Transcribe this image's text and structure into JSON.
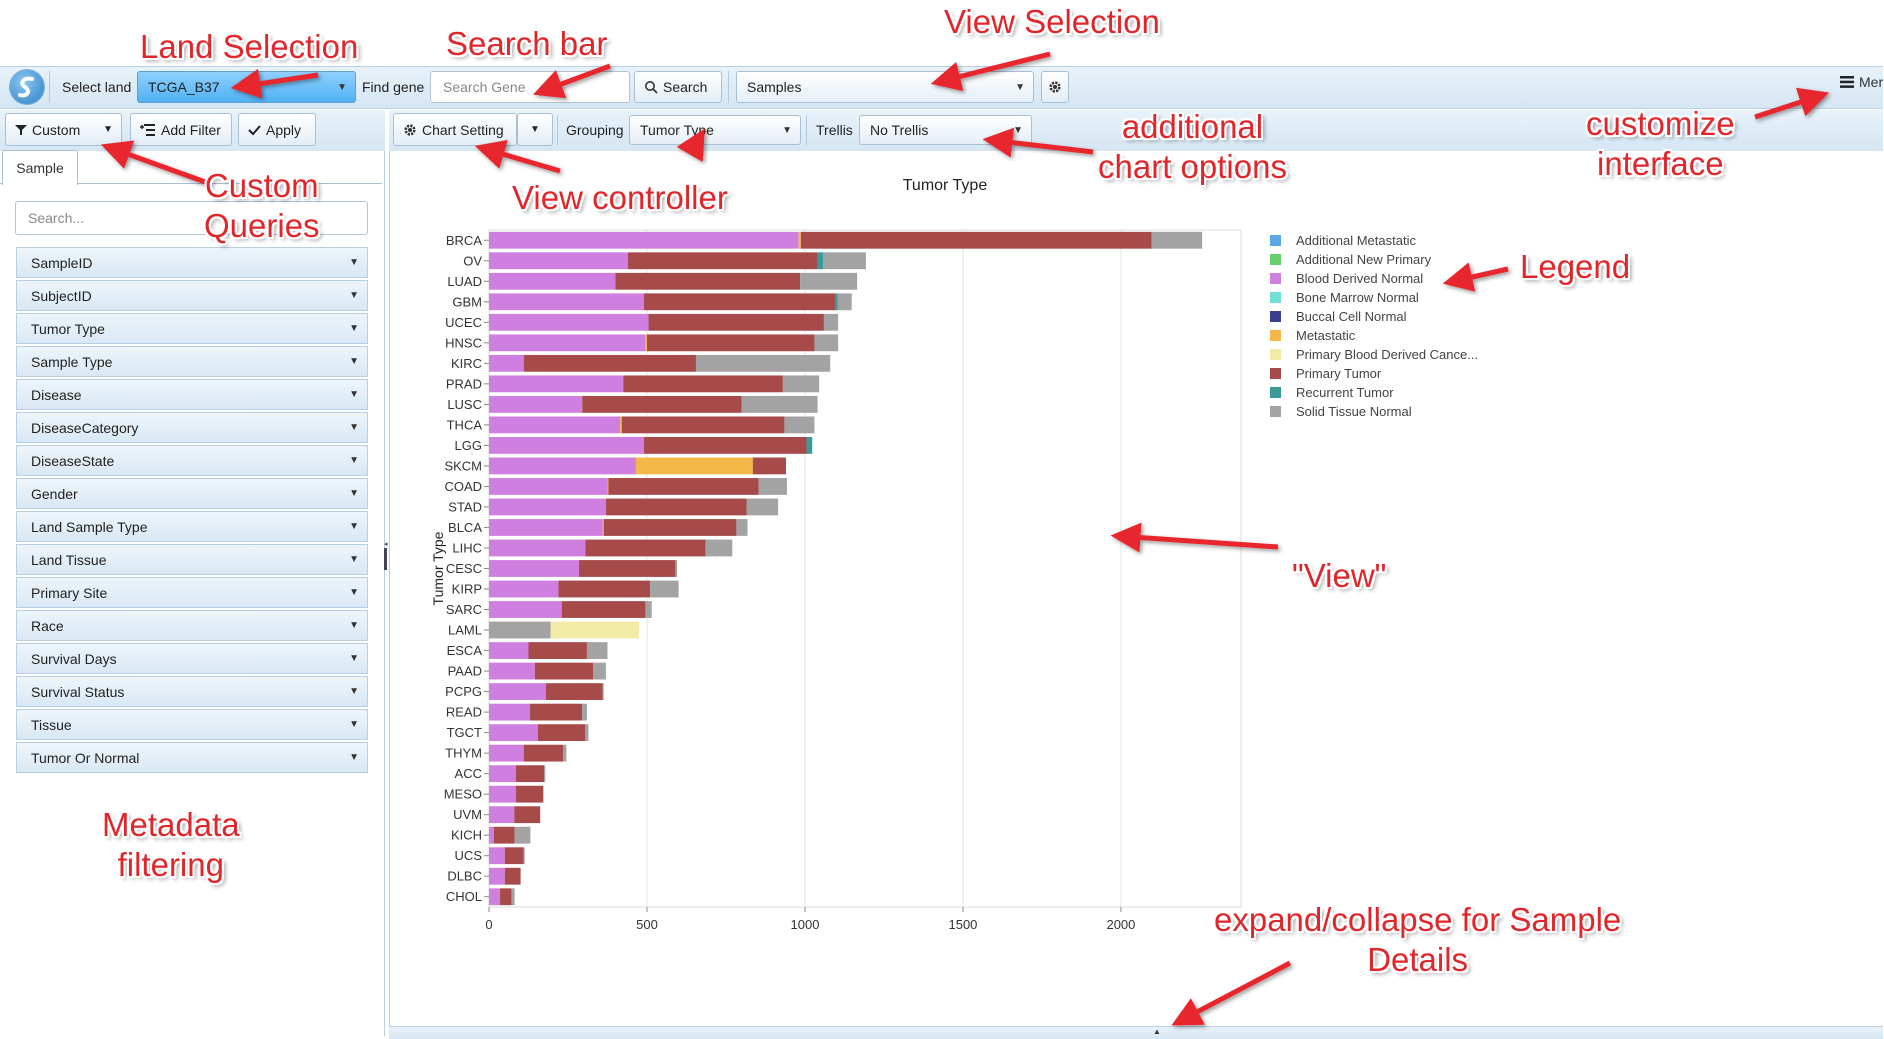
{
  "toolbar": {
    "select_land_label": "Select land",
    "land_value": "TCGA_B37",
    "find_gene_label": "Find gene",
    "search_gene_placeholder": "Search Gene",
    "search_button": "Search",
    "view_value": "Samples",
    "menu_label": "Mer"
  },
  "leftbar": {
    "custom_label": "Custom",
    "add_filter_label": "Add Filter",
    "apply_label": "Apply"
  },
  "chartbar": {
    "chart_setting_label": "Chart Setting",
    "grouping_label": "Grouping",
    "grouping_value": "Tumor Type",
    "trellis_label": "Trellis",
    "trellis_value": "No Trellis"
  },
  "sidebar": {
    "tab_label": "Sample",
    "search_placeholder": "Search...",
    "filters": [
      "SampleID",
      "SubjectID",
      "Tumor Type",
      "Sample Type",
      "Disease",
      "DiseaseCategory",
      "DiseaseState",
      "Gender",
      "Land Sample Type",
      "Land Tissue",
      "Primary Site",
      "Race",
      "Survival Days",
      "Survival Status",
      "Tissue",
      "Tumor Or Normal"
    ]
  },
  "annotations": {
    "land_selection": "Land Selection",
    "search_bar": "Search bar",
    "view_selection": "View Selection",
    "additional_chart_options_1": "additional",
    "additional_chart_options_2": "chart options",
    "customize_interface_1": "customize",
    "customize_interface_2": "interface",
    "custom_queries_1": "Custom",
    "custom_queries_2": "Queries",
    "view_controller": "View controller",
    "legend": "Legend",
    "view": "\"View\"",
    "metadata_filtering_1": "Metadata",
    "metadata_filtering_2": "filtering",
    "expand_collapse_1": "expand/collapse for Sample",
    "expand_collapse_2": "Details"
  },
  "colors": {
    "Additional Metastatic": "#5aa8e8",
    "Additional New Primary": "#67cf6b",
    "Blood Derived Normal": "#cf7fdf",
    "Bone Marrow Normal": "#6fdfd8",
    "Buccal Cell Normal": "#3a3f8f",
    "Metastatic": "#f5b74a",
    "Primary Blood Derived Cance...": "#f3eaa8",
    "Primary Tumor": "#a64a4a",
    "Recurrent Tumor": "#3a9a9a",
    "Solid Tissue Normal": "#a3a3a3"
  },
  "chart_data": {
    "type": "bar",
    "orientation": "horizontal",
    "stacked": true,
    "title": "Tumor Type",
    "xlabel": "",
    "ylabel": "Tumor Type",
    "xlim": [
      0,
      2380
    ],
    "xticks": [
      0,
      500,
      1000,
      1500,
      2000
    ],
    "grid": true,
    "legend_position": "right",
    "categories": [
      "BRCA",
      "OV",
      "LUAD",
      "GBM",
      "UCEC",
      "HNSC",
      "KIRC",
      "PRAD",
      "LUSC",
      "THCA",
      "LGG",
      "SKCM",
      "COAD",
      "STAD",
      "BLCA",
      "LIHC",
      "CESC",
      "KIRP",
      "SARC",
      "LAML",
      "ESCA",
      "PAAD",
      "PCPG",
      "READ",
      "TGCT",
      "THYM",
      "ACC",
      "MESO",
      "UVM",
      "KICH",
      "UCS",
      "DLBC",
      "CHOL"
    ],
    "legend": [
      "Additional Metastatic",
      "Additional New Primary",
      "Blood Derived Normal",
      "Bone Marrow Normal",
      "Buccal Cell Normal",
      "Metastatic",
      "Primary Blood Derived Cance...",
      "Primary Tumor",
      "Recurrent Tumor",
      "Solid Tissue Normal"
    ],
    "series": [
      {
        "name": "Blood Derived Normal",
        "values": [
          980,
          440,
          400,
          490,
          505,
          495,
          110,
          425,
          295,
          415,
          490,
          465,
          375,
          370,
          360,
          305,
          285,
          220,
          230,
          0,
          125,
          145,
          180,
          130,
          155,
          110,
          85,
          85,
          80,
          15,
          50,
          50,
          35
        ]
      },
      {
        "name": "Metastatic",
        "values": [
          7,
          0,
          0,
          0,
          0,
          5,
          0,
          0,
          0,
          5,
          0,
          370,
          3,
          0,
          3,
          0,
          0,
          0,
          0,
          0,
          0,
          0,
          0,
          0,
          0,
          0,
          0,
          0,
          0,
          0,
          0,
          0,
          0
        ]
      },
      {
        "name": "Primary Tumor",
        "values": [
          1110,
          600,
          585,
          605,
          555,
          530,
          545,
          505,
          505,
          515,
          515,
          105,
          475,
          445,
          420,
          380,
          305,
          290,
          265,
          0,
          185,
          185,
          180,
          165,
          150,
          125,
          90,
          87,
          82,
          66,
          60,
          50,
          36
        ]
      },
      {
        "name": "Recurrent Tumor",
        "values": [
          0,
          18,
          0,
          8,
          0,
          0,
          0,
          0,
          0,
          0,
          18,
          0,
          0,
          0,
          0,
          0,
          0,
          0,
          0,
          0,
          0,
          0,
          0,
          0,
          0,
          0,
          0,
          0,
          0,
          0,
          0,
          0,
          0
        ]
      },
      {
        "name": "Solid Tissue Normal",
        "values": [
          160,
          135,
          180,
          45,
          45,
          75,
          425,
          115,
          240,
          95,
          0,
          0,
          90,
          100,
          35,
          85,
          5,
          90,
          20,
          195,
          65,
          40,
          3,
          15,
          10,
          10,
          3,
          0,
          0,
          50,
          3,
          0,
          10
        ]
      },
      {
        "name": "Primary Blood Derived Cance...",
        "values": [
          0,
          0,
          0,
          0,
          0,
          0,
          0,
          0,
          0,
          0,
          0,
          0,
          0,
          0,
          0,
          0,
          0,
          0,
          0,
          280,
          0,
          0,
          0,
          0,
          0,
          0,
          0,
          0,
          0,
          0,
          0,
          0,
          0
        ]
      }
    ]
  }
}
